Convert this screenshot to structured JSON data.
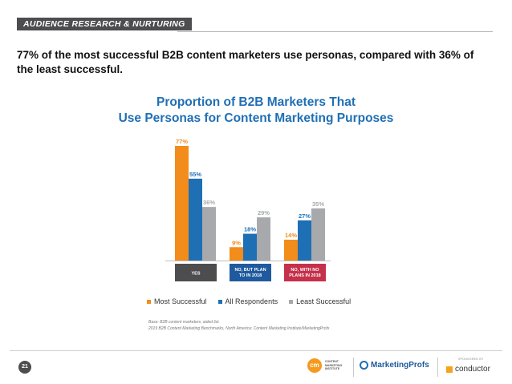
{
  "section_tag": "AUDIENCE RESEARCH & NURTURING",
  "headline": "77% of the most successful B2B content marketers use personas, compared with 36% of the least successful.",
  "chart_title_line1": "Proportion of B2B Marketers That",
  "chart_title_line2": "Use Personas for Content Marketing Purposes",
  "notes": {
    "base": "Base: B2B content marketers; aided list.",
    "source": "2019 B2B Content Marketing Benchmarks, North America: Content Marketing Institute/MarketingProfs"
  },
  "footer": {
    "page_number": "21",
    "cmi_initials": "cm",
    "cmi_text": "CONTENT MARKETING INSTITUTE",
    "marketingprofs_text": "MarketingProfs",
    "sponsored_label": "SPONSORED BY",
    "conductor_text": "conductor"
  },
  "colors": {
    "most_successful": "#f28c1b",
    "all_respondents": "#1f6fb5",
    "least_successful": "#a7a9ac",
    "yes_label_bg": "#4d4d4f",
    "plan_label_bg": "#1f5a9e",
    "no_plan_label_bg": "#c5304a"
  },
  "chart_data": {
    "type": "bar",
    "title": "Proportion of B2B Marketers That Use Personas for Content Marketing Purposes",
    "categories": [
      "YES",
      "NO, BUT PLAN TO IN 2018",
      "NO, WITH NO PLANS IN 2018"
    ],
    "series": [
      {
        "name": "Most Successful",
        "values": [
          77,
          9,
          14
        ]
      },
      {
        "name": "All Respondents",
        "values": [
          55,
          18,
          27
        ]
      },
      {
        "name": "Least Successful",
        "values": [
          36,
          29,
          35
        ]
      }
    ],
    "value_suffix": "%",
    "ylim": [
      0,
      80
    ],
    "grid": false,
    "legend_position": "bottom"
  }
}
